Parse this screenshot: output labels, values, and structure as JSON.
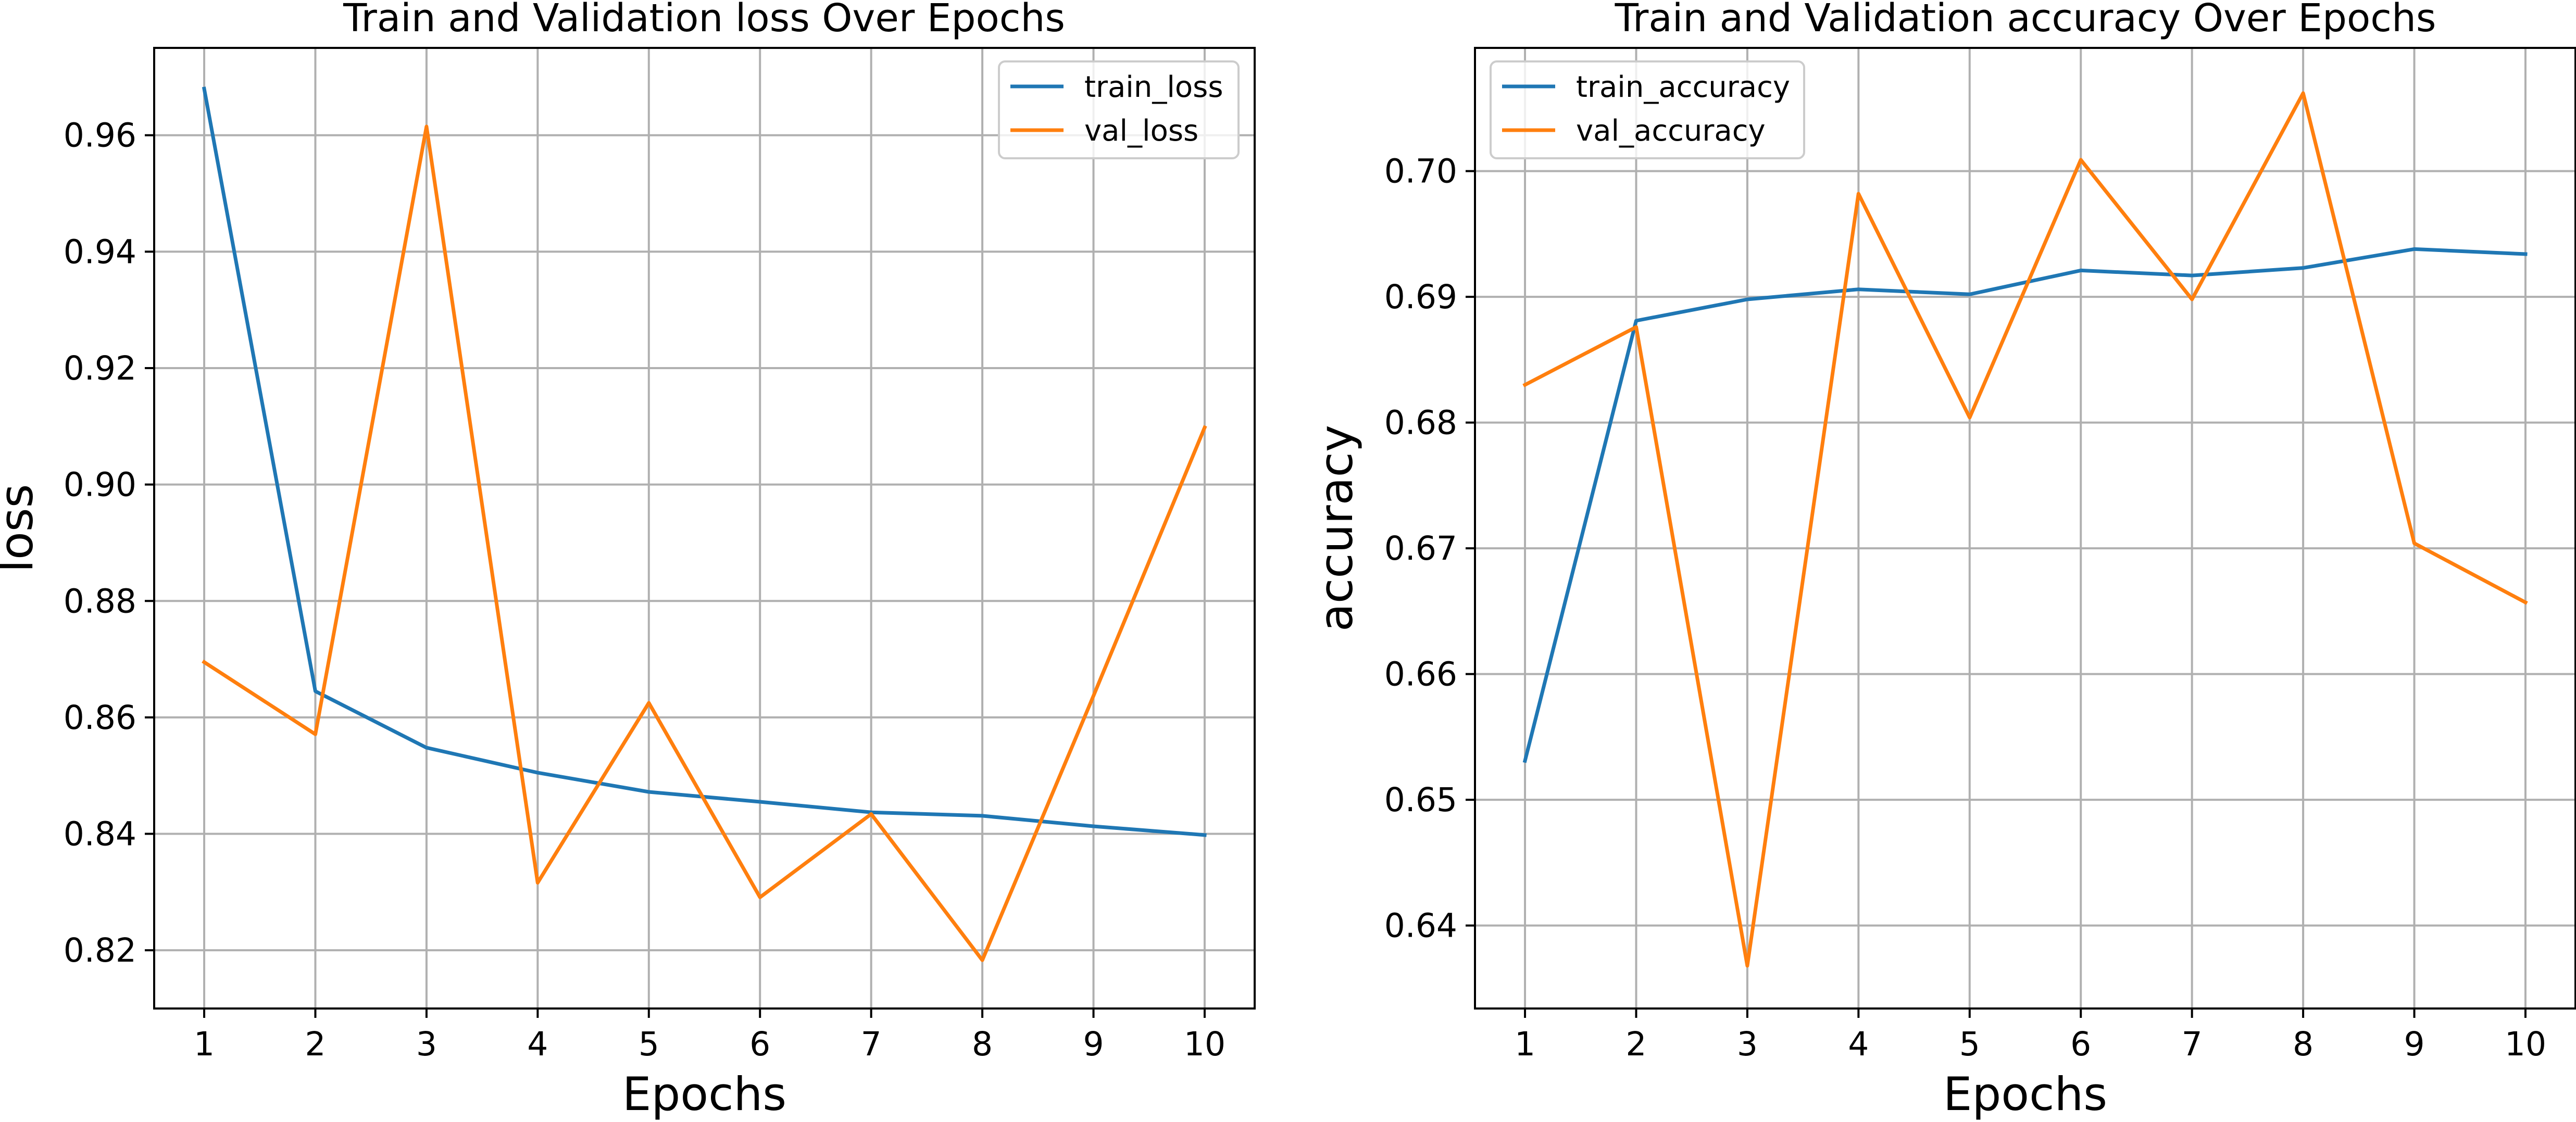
{
  "chart_data": [
    {
      "type": "line",
      "title": "Train and Validation loss Over Epochs",
      "xlabel": "Epochs",
      "ylabel": "loss",
      "x": [
        1,
        2,
        3,
        4,
        5,
        6,
        7,
        8,
        9,
        10
      ],
      "xlim": [
        0.55,
        10.45
      ],
      "ylim": [
        0.81,
        0.975
      ],
      "xticks": [
        1,
        2,
        3,
        4,
        5,
        6,
        7,
        8,
        9,
        10
      ],
      "xtick_labels": [
        "1",
        "2",
        "3",
        "4",
        "5",
        "6",
        "7",
        "8",
        "9",
        "10"
      ],
      "yticks": [
        0.82,
        0.84,
        0.86,
        0.88,
        0.9,
        0.92,
        0.94,
        0.96
      ],
      "ytick_labels": [
        "0.82",
        "0.84",
        "0.86",
        "0.88",
        "0.90",
        "0.92",
        "0.94",
        "0.96"
      ],
      "grid": true,
      "legend_position": "top-right",
      "series": [
        {
          "name": "train_loss",
          "color": "#1f77b4",
          "values": [
            0.968,
            0.8645,
            0.8548,
            0.8505,
            0.8472,
            0.8455,
            0.8437,
            0.8431,
            0.8413,
            0.8398
          ]
        },
        {
          "name": "val_loss",
          "color": "#ff7f0e",
          "values": [
            0.8695,
            0.8571,
            0.9615,
            0.8316,
            0.8625,
            0.8291,
            0.8434,
            0.8183,
            0.8637,
            0.9098
          ]
        }
      ]
    },
    {
      "type": "line",
      "title": "Train and Validation accuracy Over Epochs",
      "xlabel": "Epochs",
      "ylabel": "accuracy",
      "x": [
        1,
        2,
        3,
        4,
        5,
        6,
        7,
        8,
        9,
        10
      ],
      "xlim": [
        0.55,
        10.45
      ],
      "ylim": [
        0.6334,
        0.7098
      ],
      "xticks": [
        1,
        2,
        3,
        4,
        5,
        6,
        7,
        8,
        9,
        10
      ],
      "xtick_labels": [
        "1",
        "2",
        "3",
        "4",
        "5",
        "6",
        "7",
        "8",
        "9",
        "10"
      ],
      "yticks": [
        0.64,
        0.65,
        0.66,
        0.67,
        0.68,
        0.69,
        0.7
      ],
      "ytick_labels": [
        "0.64",
        "0.65",
        "0.66",
        "0.67",
        "0.68",
        "0.69",
        "0.70"
      ],
      "grid": true,
      "legend_position": "top-left",
      "series": [
        {
          "name": "train_accuracy",
          "color": "#1f77b4",
          "values": [
            0.6531,
            0.6881,
            0.6898,
            0.6906,
            0.6902,
            0.6921,
            0.6917,
            0.6923,
            0.6938,
            0.6934
          ]
        },
        {
          "name": "val_accuracy",
          "color": "#ff7f0e",
          "values": [
            0.683,
            0.6876,
            0.6368,
            0.6982,
            0.6804,
            0.7009,
            0.6898,
            0.7062,
            0.6704,
            0.6657
          ]
        }
      ]
    }
  ]
}
